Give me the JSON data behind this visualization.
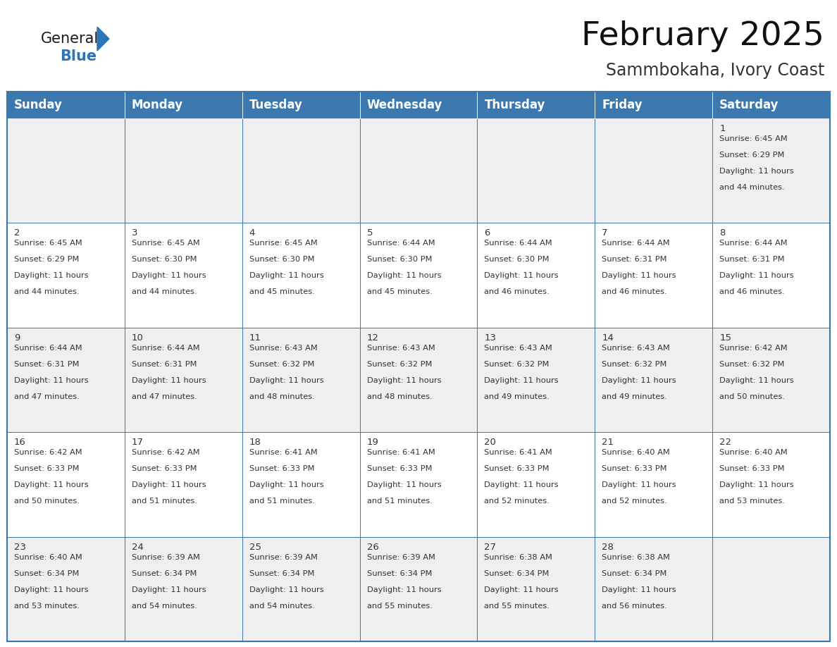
{
  "title": "February 2025",
  "subtitle": "Sammbokaha, Ivory Coast",
  "header_bg": "#3b78b0",
  "header_text": "#ffffff",
  "row0_bg": "#efefef",
  "row1_bg": "#ffffff",
  "border_color": "#3b78b0",
  "text_color": "#333333",
  "days_of_week": [
    "Sunday",
    "Monday",
    "Tuesday",
    "Wednesday",
    "Thursday",
    "Friday",
    "Saturday"
  ],
  "title_fontsize": 34,
  "subtitle_fontsize": 17,
  "header_fontsize": 12,
  "cell_fontsize": 8.2,
  "day_num_fontsize": 9.5,
  "logo_general_color": "#1a1a1a",
  "logo_blue_color": "#2e75b6",
  "calendar_data": [
    [
      null,
      null,
      null,
      null,
      null,
      null,
      {
        "day": 1,
        "sunrise": "6:45 AM",
        "sunset": "6:29 PM",
        "daylight": "11 hours and 44 minutes."
      }
    ],
    [
      {
        "day": 2,
        "sunrise": "6:45 AM",
        "sunset": "6:29 PM",
        "daylight": "11 hours and 44 minutes."
      },
      {
        "day": 3,
        "sunrise": "6:45 AM",
        "sunset": "6:30 PM",
        "daylight": "11 hours and 44 minutes."
      },
      {
        "day": 4,
        "sunrise": "6:45 AM",
        "sunset": "6:30 PM",
        "daylight": "11 hours and 45 minutes."
      },
      {
        "day": 5,
        "sunrise": "6:44 AM",
        "sunset": "6:30 PM",
        "daylight": "11 hours and 45 minutes."
      },
      {
        "day": 6,
        "sunrise": "6:44 AM",
        "sunset": "6:30 PM",
        "daylight": "11 hours and 46 minutes."
      },
      {
        "day": 7,
        "sunrise": "6:44 AM",
        "sunset": "6:31 PM",
        "daylight": "11 hours and 46 minutes."
      },
      {
        "day": 8,
        "sunrise": "6:44 AM",
        "sunset": "6:31 PM",
        "daylight": "11 hours and 46 minutes."
      }
    ],
    [
      {
        "day": 9,
        "sunrise": "6:44 AM",
        "sunset": "6:31 PM",
        "daylight": "11 hours and 47 minutes."
      },
      {
        "day": 10,
        "sunrise": "6:44 AM",
        "sunset": "6:31 PM",
        "daylight": "11 hours and 47 minutes."
      },
      {
        "day": 11,
        "sunrise": "6:43 AM",
        "sunset": "6:32 PM",
        "daylight": "11 hours and 48 minutes."
      },
      {
        "day": 12,
        "sunrise": "6:43 AM",
        "sunset": "6:32 PM",
        "daylight": "11 hours and 48 minutes."
      },
      {
        "day": 13,
        "sunrise": "6:43 AM",
        "sunset": "6:32 PM",
        "daylight": "11 hours and 49 minutes."
      },
      {
        "day": 14,
        "sunrise": "6:43 AM",
        "sunset": "6:32 PM",
        "daylight": "11 hours and 49 minutes."
      },
      {
        "day": 15,
        "sunrise": "6:42 AM",
        "sunset": "6:32 PM",
        "daylight": "11 hours and 50 minutes."
      }
    ],
    [
      {
        "day": 16,
        "sunrise": "6:42 AM",
        "sunset": "6:33 PM",
        "daylight": "11 hours and 50 minutes."
      },
      {
        "day": 17,
        "sunrise": "6:42 AM",
        "sunset": "6:33 PM",
        "daylight": "11 hours and 51 minutes."
      },
      {
        "day": 18,
        "sunrise": "6:41 AM",
        "sunset": "6:33 PM",
        "daylight": "11 hours and 51 minutes."
      },
      {
        "day": 19,
        "sunrise": "6:41 AM",
        "sunset": "6:33 PM",
        "daylight": "11 hours and 51 minutes."
      },
      {
        "day": 20,
        "sunrise": "6:41 AM",
        "sunset": "6:33 PM",
        "daylight": "11 hours and 52 minutes."
      },
      {
        "day": 21,
        "sunrise": "6:40 AM",
        "sunset": "6:33 PM",
        "daylight": "11 hours and 52 minutes."
      },
      {
        "day": 22,
        "sunrise": "6:40 AM",
        "sunset": "6:33 PM",
        "daylight": "11 hours and 53 minutes."
      }
    ],
    [
      {
        "day": 23,
        "sunrise": "6:40 AM",
        "sunset": "6:34 PM",
        "daylight": "11 hours and 53 minutes."
      },
      {
        "day": 24,
        "sunrise": "6:39 AM",
        "sunset": "6:34 PM",
        "daylight": "11 hours and 54 minutes."
      },
      {
        "day": 25,
        "sunrise": "6:39 AM",
        "sunset": "6:34 PM",
        "daylight": "11 hours and 54 minutes."
      },
      {
        "day": 26,
        "sunrise": "6:39 AM",
        "sunset": "6:34 PM",
        "daylight": "11 hours and 55 minutes."
      },
      {
        "day": 27,
        "sunrise": "6:38 AM",
        "sunset": "6:34 PM",
        "daylight": "11 hours and 55 minutes."
      },
      {
        "day": 28,
        "sunrise": "6:38 AM",
        "sunset": "6:34 PM",
        "daylight": "11 hours and 56 minutes."
      },
      null
    ]
  ]
}
